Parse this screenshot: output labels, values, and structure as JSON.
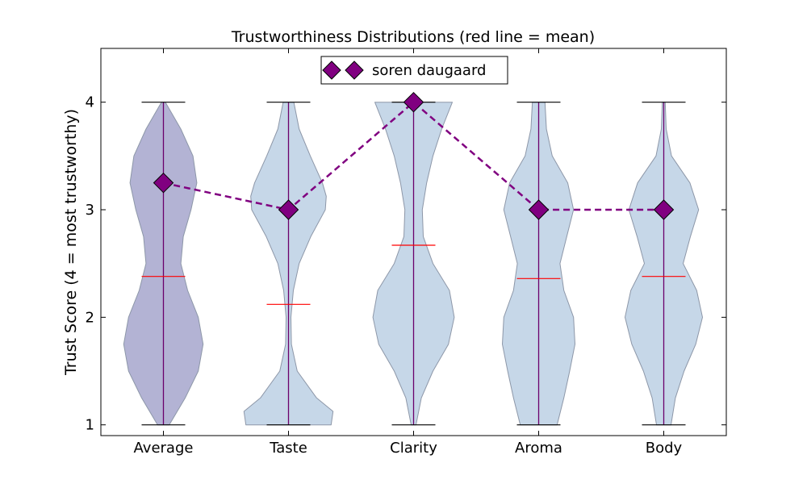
{
  "chart_data": {
    "type": "violin",
    "title": "Trustworthiness Distributions (red line = mean)",
    "xlabel": "",
    "ylabel": "Trust Score (4 = most trustworthy)",
    "categories": [
      "Average",
      "Taste",
      "Clarity",
      "Aroma",
      "Body"
    ],
    "yticks": [
      "1",
      "2",
      "3",
      "4"
    ],
    "ylim": [
      0.9,
      4.5
    ],
    "grid": false,
    "legend_position": "top-center",
    "distributions": [
      {
        "category": "Average",
        "min": 1,
        "max": 4,
        "mean": 2.38,
        "density": [
          [
            1.0,
            0.12
          ],
          [
            1.25,
            0.45
          ],
          [
            1.5,
            0.72
          ],
          [
            1.75,
            0.82
          ],
          [
            2.0,
            0.72
          ],
          [
            2.25,
            0.5
          ],
          [
            2.5,
            0.36
          ],
          [
            2.75,
            0.41
          ],
          [
            3.0,
            0.57
          ],
          [
            3.25,
            0.69
          ],
          [
            3.5,
            0.61
          ],
          [
            3.75,
            0.36
          ],
          [
            4.0,
            0.04
          ]
        ]
      },
      {
        "category": "Taste",
        "min": 1,
        "max": 4,
        "mean": 2.12,
        "density": [
          [
            1.0,
            0.88
          ],
          [
            1.125,
            0.92
          ],
          [
            1.25,
            0.58
          ],
          [
            1.5,
            0.18
          ],
          [
            1.75,
            0.06
          ],
          [
            2.0,
            0.05
          ],
          [
            2.25,
            0.1
          ],
          [
            2.5,
            0.22
          ],
          [
            2.75,
            0.46
          ],
          [
            3.0,
            0.76
          ],
          [
            3.125,
            0.78
          ],
          [
            3.25,
            0.7
          ],
          [
            3.5,
            0.45
          ],
          [
            3.75,
            0.22
          ],
          [
            4.0,
            0.11
          ]
        ]
      },
      {
        "category": "Clarity",
        "min": 1,
        "max": 4,
        "mean": 2.67,
        "density": [
          [
            1.0,
            0.05
          ],
          [
            1.25,
            0.16
          ],
          [
            1.5,
            0.4
          ],
          [
            1.75,
            0.72
          ],
          [
            2.0,
            0.84
          ],
          [
            2.25,
            0.74
          ],
          [
            2.5,
            0.4
          ],
          [
            2.75,
            0.2
          ],
          [
            3.0,
            0.18
          ],
          [
            3.25,
            0.27
          ],
          [
            3.5,
            0.4
          ],
          [
            3.75,
            0.58
          ],
          [
            4.0,
            0.8
          ]
        ]
      },
      {
        "category": "Aroma",
        "min": 1,
        "max": 4,
        "mean": 2.36,
        "density": [
          [
            1.0,
            0.38
          ],
          [
            1.25,
            0.52
          ],
          [
            1.5,
            0.64
          ],
          [
            1.75,
            0.75
          ],
          [
            2.0,
            0.72
          ],
          [
            2.25,
            0.52
          ],
          [
            2.5,
            0.44
          ],
          [
            2.75,
            0.58
          ],
          [
            3.0,
            0.72
          ],
          [
            3.25,
            0.6
          ],
          [
            3.5,
            0.28
          ],
          [
            3.75,
            0.16
          ],
          [
            4.0,
            0.13
          ]
        ]
      },
      {
        "category": "Body",
        "min": 1,
        "max": 4,
        "mean": 2.38,
        "density": [
          [
            1.0,
            0.15
          ],
          [
            1.25,
            0.24
          ],
          [
            1.5,
            0.42
          ],
          [
            1.75,
            0.66
          ],
          [
            2.0,
            0.8
          ],
          [
            2.25,
            0.68
          ],
          [
            2.5,
            0.4
          ],
          [
            2.75,
            0.55
          ],
          [
            3.0,
            0.72
          ],
          [
            3.25,
            0.54
          ],
          [
            3.5,
            0.16
          ],
          [
            3.75,
            0.05
          ],
          [
            4.0,
            0.03
          ]
        ]
      }
    ],
    "series": [
      {
        "name": "soren daugaard",
        "values": [
          3.25,
          3.0,
          4.0,
          3.0,
          3.0
        ]
      }
    ],
    "colors": {
      "violin_first": "#b3b3d4",
      "violin_other": "#c6d7e8",
      "violin_edge": "#8d97a8",
      "center_line": "#6b006b",
      "mean_line": "#ff0000",
      "extrema": "#000000",
      "series": "#800080"
    }
  }
}
